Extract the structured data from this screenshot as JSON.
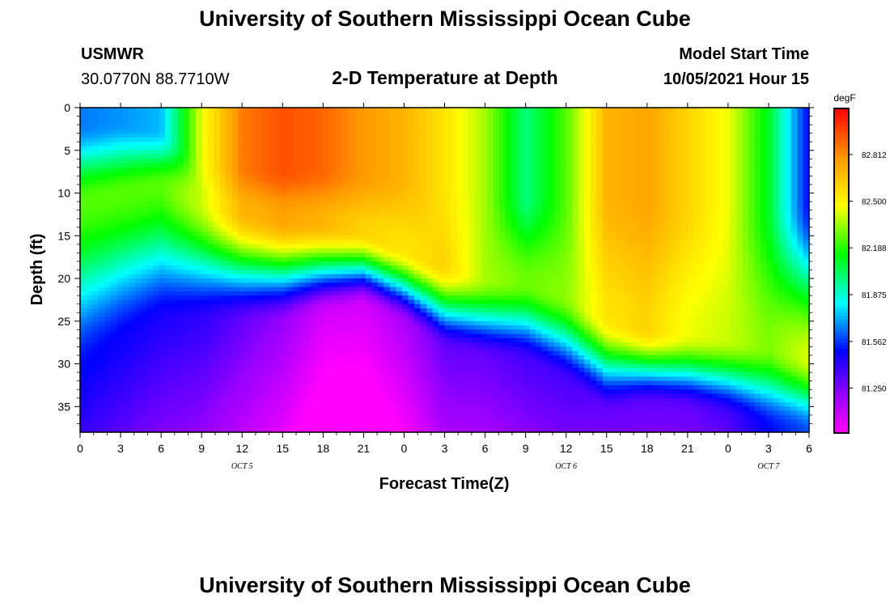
{
  "page": {
    "title_top": "University of Southern Mississippi Ocean Cube",
    "title_bottom": "University of Southern Mississippi Ocean Cube",
    "station_name": "USMWR",
    "station_coords": "30.0770N  88.7710W",
    "subtitle": "2-D Temperature at Depth",
    "model_start_label": "Model Start Time",
    "model_start_value": "10/05/2021 Hour 15"
  },
  "chart_data": {
    "type": "heatmap",
    "title": "2-D Temperature at Depth",
    "xlabel": "Forecast Time(Z)",
    "ylabel": "Depth (ft)",
    "x_hours_range": [
      0,
      54
    ],
    "x_ticks": [
      {
        "hour": 0,
        "label": "0"
      },
      {
        "hour": 3,
        "label": "3"
      },
      {
        "hour": 6,
        "label": "6"
      },
      {
        "hour": 9,
        "label": "9"
      },
      {
        "hour": 12,
        "label": "12"
      },
      {
        "hour": 15,
        "label": "15"
      },
      {
        "hour": 18,
        "label": "18"
      },
      {
        "hour": 21,
        "label": "21"
      },
      {
        "hour": 24,
        "label": "0"
      },
      {
        "hour": 27,
        "label": "3"
      },
      {
        "hour": 30,
        "label": "6"
      },
      {
        "hour": 33,
        "label": "9"
      },
      {
        "hour": 36,
        "label": "12"
      },
      {
        "hour": 39,
        "label": "15"
      },
      {
        "hour": 42,
        "label": "18"
      },
      {
        "hour": 45,
        "label": "21"
      },
      {
        "hour": 48,
        "label": "0"
      },
      {
        "hour": 51,
        "label": "3"
      },
      {
        "hour": 54,
        "label": "6"
      }
    ],
    "day_labels": [
      {
        "hour": 12,
        "label": "OCT 5"
      },
      {
        "hour": 36,
        "label": "OCT 6"
      },
      {
        "hour": 51,
        "label": "OCT 7"
      }
    ],
    "y_range": [
      0,
      38
    ],
    "y_ticks": [
      0,
      5,
      10,
      15,
      20,
      25,
      30,
      35
    ],
    "colorbar": {
      "unit": "degF",
      "min": 80.95,
      "max": 83.12,
      "tick_labels": [
        "82.812",
        "82.500",
        "82.188",
        "81.875",
        "81.562",
        "81.250"
      ],
      "tick_values": [
        82.812,
        82.5,
        82.188,
        81.875,
        81.562,
        81.25
      ]
    },
    "surface_depth_ft": [
      2.0,
      1.7,
      2.5,
      6.0,
      7.0,
      7.0,
      7.0,
      7.5,
      8.0,
      9.0,
      9.5,
      10.0,
      10.0,
      10.0,
      10.0,
      11.0,
      11.5,
      11.5,
      11.0
    ],
    "surface_temp_degF": [
      81.65,
      81.68,
      81.73,
      82.45,
      82.85,
      82.95,
      82.9,
      82.78,
      82.7,
      82.55,
      82.35,
      81.98,
      82.25,
      82.7,
      82.75,
      82.6,
      82.45,
      82.1,
      81.48
    ],
    "midlayer_temp_degF": [
      82.25,
      82.25,
      82.25,
      82.4,
      82.7,
      82.75,
      82.7,
      82.6,
      82.55,
      82.6,
      82.35,
      82.28,
      82.32,
      82.55,
      82.6,
      82.45,
      82.4,
      82.3,
      82.42
    ],
    "cline_top_ft": [
      11.0,
      10.0,
      9.0,
      11.0,
      12.0,
      13.0,
      13.5,
      14.5,
      16.5,
      18.5,
      20.0,
      20.5,
      22.0,
      24.5,
      26.0,
      26.5,
      27.0,
      28.0,
      29.5
    ],
    "cline_bottom_ft": [
      31.0,
      28.0,
      26.0,
      25.5,
      25.5,
      25.5,
      24.5,
      23.5,
      25.5,
      28.5,
      29.5,
      30.0,
      32.5,
      36.0,
      35.0,
      35.5,
      36.5,
      37.5,
      38.0
    ],
    "deep_temp_degF": [
      81.5,
      81.47,
      81.43,
      81.4,
      81.3,
      81.2,
      81.05,
      81.05,
      81.15,
      81.3,
      81.3,
      81.35,
      81.35,
      81.3,
      81.3,
      81.3,
      81.35,
      81.5,
      81.6
    ]
  }
}
